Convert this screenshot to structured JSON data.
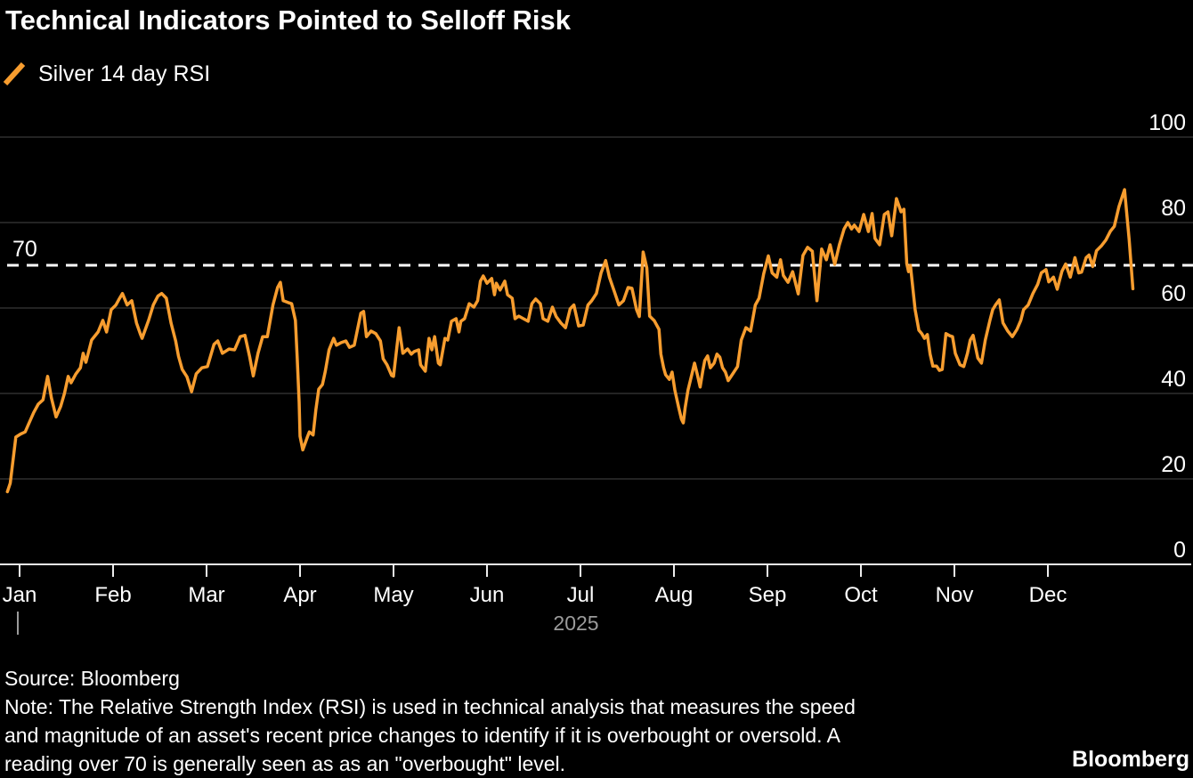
{
  "title": "Technical Indicators Pointed to Selloff Risk",
  "legend": {
    "label": "Silver 14 day RSI"
  },
  "footer": {
    "source": "Source: Bloomberg",
    "note_lines": [
      "Note: The Relative Strength Index (RSI) is used in technical analysis that measures the speed",
      "and magnitude of an asset's recent price changes to identify if it is overbought or oversold. A",
      "reading over 70 is generally seen as as an \"overbought\" level."
    ],
    "logo": "Bloomberg"
  },
  "colors": {
    "background": "#000000",
    "line_orange": "#F79D2F",
    "grid": "#464646",
    "axis": "#EDEDED",
    "text": "#FFFFFF",
    "muted": "#9B9B9B",
    "reference": "#FFFFFF"
  },
  "chart_data": {
    "type": "line",
    "title": "Technical Indicators Pointed to Selloff Risk",
    "xlabel": "",
    "ylabel": "",
    "grid": "horizontal",
    "legend_position": "top-left",
    "x_axis": {
      "ticks": [
        "Jan",
        "Feb",
        "Mar",
        "Apr",
        "May",
        "Jun",
        "Jul",
        "Aug",
        "Sep",
        "Oct",
        "Nov",
        "Dec"
      ],
      "year_label": "2025"
    },
    "y_axis": {
      "ticks": [
        0,
        20,
        40,
        60,
        80,
        100
      ],
      "range": [
        0,
        100
      ],
      "side": "right"
    },
    "reference_line": {
      "value": 70,
      "label": "70",
      "style": "dashed"
    },
    "series": [
      {
        "name": "Silver 14 day RSI",
        "color": "#F79D2F",
        "x_unit": "month index, 0 = Jan 2025 tick (fractional months)",
        "points": [
          [
            -0.13,
            17
          ],
          [
            -0.1,
            19
          ],
          [
            -0.04,
            29.8
          ],
          [
            0.01,
            30.5
          ],
          [
            0.06,
            31
          ],
          [
            0.1,
            33
          ],
          [
            0.15,
            35.5
          ],
          [
            0.2,
            37.5
          ],
          [
            0.25,
            38.5
          ],
          [
            0.3,
            44
          ],
          [
            0.34,
            39
          ],
          [
            0.39,
            34.5
          ],
          [
            0.44,
            37
          ],
          [
            0.48,
            40
          ],
          [
            0.52,
            44
          ],
          [
            0.55,
            42.5
          ],
          [
            0.6,
            44.5
          ],
          [
            0.65,
            46
          ],
          [
            0.68,
            49.4
          ],
          [
            0.71,
            47.3
          ],
          [
            0.77,
            52.5
          ],
          [
            0.84,
            54.4
          ],
          [
            0.89,
            57.1
          ],
          [
            0.93,
            54.4
          ],
          [
            0.98,
            59.6
          ],
          [
            1.03,
            60.7
          ],
          [
            1.06,
            61.9
          ],
          [
            1.1,
            63.4
          ],
          [
            1.15,
            60.7
          ],
          [
            1.2,
            61.7
          ],
          [
            1.25,
            56.5
          ],
          [
            1.29,
            54
          ],
          [
            1.31,
            52.9
          ],
          [
            1.38,
            57.1
          ],
          [
            1.43,
            60.7
          ],
          [
            1.48,
            62.8
          ],
          [
            1.52,
            63.4
          ],
          [
            1.57,
            62.3
          ],
          [
            1.62,
            56.5
          ],
          [
            1.67,
            52.3
          ],
          [
            1.7,
            48.7
          ],
          [
            1.74,
            45.6
          ],
          [
            1.79,
            43.9
          ],
          [
            1.84,
            40.4
          ],
          [
            1.89,
            44.6
          ],
          [
            1.95,
            46
          ],
          [
            2.01,
            46.3
          ],
          [
            2.08,
            51.5
          ],
          [
            2.12,
            52.3
          ],
          [
            2.17,
            49.4
          ],
          [
            2.24,
            50.4
          ],
          [
            2.3,
            50.2
          ],
          [
            2.36,
            53.3
          ],
          [
            2.41,
            53.6
          ],
          [
            2.46,
            48.7
          ],
          [
            2.5,
            44.1
          ],
          [
            2.55,
            49.4
          ],
          [
            2.6,
            53.3
          ],
          [
            2.65,
            53.3
          ],
          [
            2.71,
            60.7
          ],
          [
            2.76,
            64.8
          ],
          [
            2.79,
            66
          ],
          [
            2.82,
            61.7
          ],
          [
            2.87,
            61.3
          ],
          [
            2.91,
            61
          ],
          [
            2.95,
            57.1
          ],
          [
            2.97,
            48
          ],
          [
            2.99,
            38
          ],
          [
            3.0,
            30
          ],
          [
            3.03,
            26.8
          ],
          [
            3.08,
            29.9
          ],
          [
            3.1,
            31
          ],
          [
            3.14,
            30.3
          ],
          [
            3.17,
            36.2
          ],
          [
            3.2,
            41
          ],
          [
            3.24,
            42.1
          ],
          [
            3.27,
            45.2
          ],
          [
            3.31,
            50.2
          ],
          [
            3.36,
            52.9
          ],
          [
            3.39,
            51.3
          ],
          [
            3.44,
            51.9
          ],
          [
            3.49,
            52.3
          ],
          [
            3.53,
            50.8
          ],
          [
            3.58,
            51.3
          ],
          [
            3.65,
            58.8
          ],
          [
            3.68,
            59.2
          ],
          [
            3.71,
            53.3
          ],
          [
            3.76,
            54.6
          ],
          [
            3.81,
            54
          ],
          [
            3.86,
            52.3
          ],
          [
            3.89,
            48.1
          ],
          [
            3.93,
            46.7
          ],
          [
            3.98,
            44.2
          ],
          [
            4.0,
            44
          ],
          [
            4.06,
            55.4
          ],
          [
            4.1,
            49.4
          ],
          [
            4.15,
            50.4
          ],
          [
            4.19,
            49.2
          ],
          [
            4.22,
            49.8
          ],
          [
            4.27,
            50.2
          ],
          [
            4.29,
            46.7
          ],
          [
            4.34,
            45.2
          ],
          [
            4.38,
            52.9
          ],
          [
            4.41,
            50.2
          ],
          [
            4.44,
            53.3
          ],
          [
            4.48,
            47.1
          ],
          [
            4.5,
            46.7
          ],
          [
            4.55,
            52.9
          ],
          [
            4.58,
            52.5
          ],
          [
            4.62,
            56.9
          ],
          [
            4.67,
            57.5
          ],
          [
            4.7,
            54.4
          ],
          [
            4.72,
            56.9
          ],
          [
            4.76,
            57.5
          ],
          [
            4.81,
            61
          ],
          [
            4.86,
            60.2
          ],
          [
            4.9,
            61.7
          ],
          [
            4.93,
            66.3
          ],
          [
            4.96,
            67.5
          ],
          [
            5.0,
            65.8
          ],
          [
            5.05,
            66.9
          ],
          [
            5.08,
            63.1
          ],
          [
            5.1,
            65.8
          ],
          [
            5.14,
            64.2
          ],
          [
            5.19,
            66.3
          ],
          [
            5.22,
            63.1
          ],
          [
            5.27,
            62.3
          ],
          [
            5.3,
            57.5
          ],
          [
            5.34,
            58.1
          ],
          [
            5.39,
            57.5
          ],
          [
            5.44,
            56.9
          ],
          [
            5.48,
            61
          ],
          [
            5.52,
            62.1
          ],
          [
            5.57,
            61
          ],
          [
            5.6,
            57.5
          ],
          [
            5.65,
            56.9
          ],
          [
            5.7,
            60.2
          ],
          [
            5.74,
            58
          ],
          [
            5.79,
            56.5
          ],
          [
            5.84,
            55.4
          ],
          [
            5.89,
            59.8
          ],
          [
            5.93,
            60.7
          ],
          [
            5.98,
            55.8
          ],
          [
            6.03,
            56
          ],
          [
            6.08,
            60.7
          ],
          [
            6.12,
            61.7
          ],
          [
            6.17,
            63.4
          ],
          [
            6.22,
            68.2
          ],
          [
            6.27,
            71.1
          ],
          [
            6.31,
            67.2
          ],
          [
            6.36,
            64
          ],
          [
            6.41,
            60.7
          ],
          [
            6.46,
            61.7
          ],
          [
            6.51,
            64.8
          ],
          [
            6.55,
            64.6
          ],
          [
            6.6,
            59.6
          ],
          [
            6.63,
            58
          ],
          [
            6.67,
            73.1
          ],
          [
            6.71,
            69.4
          ],
          [
            6.74,
            58.1
          ],
          [
            6.79,
            57
          ],
          [
            6.84,
            55
          ],
          [
            6.86,
            49.2
          ],
          [
            6.89,
            46
          ],
          [
            6.91,
            44.4
          ],
          [
            6.95,
            43.3
          ],
          [
            6.98,
            45
          ],
          [
            7.01,
            40.8
          ],
          [
            7.05,
            36.7
          ],
          [
            7.08,
            34
          ],
          [
            7.1,
            33.1
          ],
          [
            7.12,
            36.7
          ],
          [
            7.15,
            40.8
          ],
          [
            7.19,
            44.4
          ],
          [
            7.22,
            47.1
          ],
          [
            7.25,
            44.4
          ],
          [
            7.28,
            41.5
          ],
          [
            7.31,
            45.4
          ],
          [
            7.33,
            47.7
          ],
          [
            7.36,
            48.8
          ],
          [
            7.39,
            46
          ],
          [
            7.43,
            47.1
          ],
          [
            7.46,
            49.2
          ],
          [
            7.49,
            48.5
          ],
          [
            7.52,
            46
          ],
          [
            7.55,
            45
          ],
          [
            7.58,
            43
          ],
          [
            7.63,
            44.6
          ],
          [
            7.68,
            46.3
          ],
          [
            7.72,
            52.5
          ],
          [
            7.77,
            55.4
          ],
          [
            7.82,
            54.6
          ],
          [
            7.87,
            60.7
          ],
          [
            7.91,
            62.3
          ],
          [
            7.96,
            68
          ],
          [
            8.01,
            72.2
          ],
          [
            8.05,
            68.2
          ],
          [
            8.1,
            67.2
          ],
          [
            8.14,
            71.3
          ],
          [
            8.17,
            67.6
          ],
          [
            8.22,
            66
          ],
          [
            8.27,
            68.5
          ],
          [
            8.33,
            63.3
          ],
          [
            8.38,
            72.3
          ],
          [
            8.43,
            74.2
          ],
          [
            8.48,
            73.3
          ],
          [
            8.53,
            61.7
          ],
          [
            8.58,
            73.8
          ],
          [
            8.63,
            71.3
          ],
          [
            8.67,
            74.8
          ],
          [
            8.72,
            70.2
          ],
          [
            8.77,
            74.8
          ],
          [
            8.82,
            78.5
          ],
          [
            8.86,
            80
          ],
          [
            8.9,
            78.5
          ],
          [
            8.93,
            79.4
          ],
          [
            8.98,
            77.9
          ],
          [
            9.03,
            81.9
          ],
          [
            9.08,
            77.9
          ],
          [
            9.12,
            82.1
          ],
          [
            9.15,
            76.3
          ],
          [
            9.2,
            74.8
          ],
          [
            9.25,
            81.9
          ],
          [
            9.29,
            82.5
          ],
          [
            9.33,
            76.9
          ],
          [
            9.38,
            85.6
          ],
          [
            9.43,
            82.5
          ],
          [
            9.46,
            83.1
          ],
          [
            9.49,
            70.4
          ],
          [
            9.51,
            68.5
          ],
          [
            9.53,
            70
          ],
          [
            9.58,
            59.6
          ],
          [
            9.62,
            54.8
          ],
          [
            9.65,
            54
          ],
          [
            9.68,
            52.9
          ],
          [
            9.71,
            53.8
          ],
          [
            9.74,
            49.2
          ],
          [
            9.77,
            46.4
          ],
          [
            9.81,
            46.4
          ],
          [
            9.84,
            45.4
          ],
          [
            9.87,
            45.6
          ],
          [
            9.91,
            54
          ],
          [
            9.95,
            53.5
          ],
          [
            9.98,
            53.3
          ],
          [
            10.01,
            49.4
          ],
          [
            10.06,
            46.7
          ],
          [
            10.1,
            46.3
          ],
          [
            10.14,
            49.4
          ],
          [
            10.17,
            52.5
          ],
          [
            10.2,
            53.6
          ],
          [
            10.25,
            48.3
          ],
          [
            10.29,
            47.1
          ],
          [
            10.33,
            52.5
          ],
          [
            10.38,
            57.1
          ],
          [
            10.41,
            59.6
          ],
          [
            10.44,
            60.7
          ],
          [
            10.48,
            61.9
          ],
          [
            10.52,
            56.5
          ],
          [
            10.57,
            54.6
          ],
          [
            10.62,
            53.3
          ],
          [
            10.67,
            55
          ],
          [
            10.71,
            57.1
          ],
          [
            10.74,
            59.6
          ],
          [
            10.79,
            60.7
          ],
          [
            10.84,
            63.4
          ],
          [
            10.89,
            65.5
          ],
          [
            10.93,
            68.2
          ],
          [
            10.98,
            69
          ],
          [
            11.01,
            66.1
          ],
          [
            11.06,
            67.2
          ],
          [
            11.1,
            64.4
          ],
          [
            11.15,
            68.6
          ],
          [
            11.19,
            70.3
          ],
          [
            11.24,
            67.2
          ],
          [
            11.29,
            71.8
          ],
          [
            11.33,
            68.2
          ],
          [
            11.36,
            68.4
          ],
          [
            11.41,
            71.8
          ],
          [
            11.44,
            72.4
          ],
          [
            11.48,
            69.7
          ],
          [
            11.52,
            73.4
          ],
          [
            11.57,
            74.5
          ],
          [
            11.62,
            75.9
          ],
          [
            11.67,
            78
          ],
          [
            11.71,
            79.1
          ],
          [
            11.76,
            83.7
          ],
          [
            11.82,
            87.7
          ],
          [
            11.87,
            76
          ],
          [
            11.91,
            64.5
          ]
        ]
      }
    ]
  }
}
